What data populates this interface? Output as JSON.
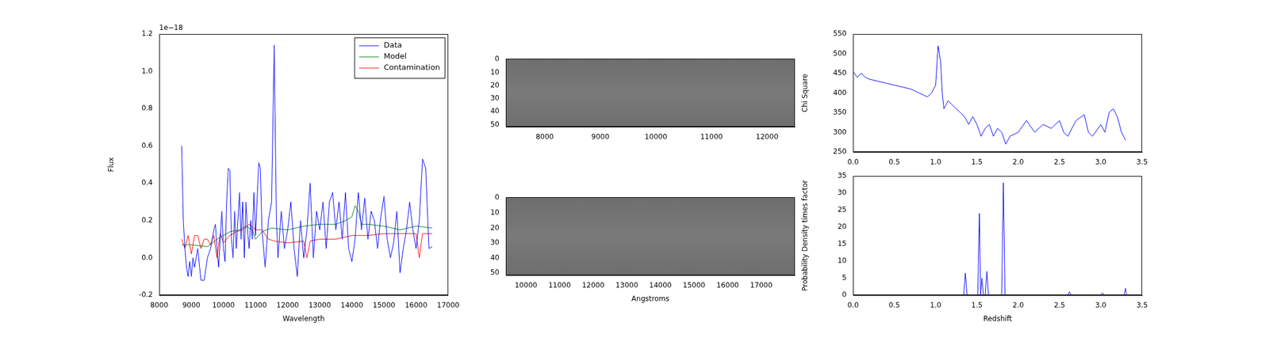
{
  "chart_data": [
    {
      "type": "line",
      "x_label": "Wavelength",
      "y_label": "Flux",
      "annotations": [
        "1e−18"
      ],
      "legend": "upper right",
      "xlim": [
        8000,
        17000
      ],
      "xticks": [
        8000,
        9000,
        10000,
        11000,
        12000,
        13000,
        14000,
        15000,
        16000,
        17000
      ],
      "ylim": [
        -0.2,
        1.2
      ],
      "yticks": [
        -0.2,
        {
          "value": 0,
          "label": "0.0"
        },
        0.2,
        0.4,
        0.6,
        0.8,
        {
          "value": 1,
          "label": "1.0"
        },
        1.2
      ],
      "series": [
        {
          "name": "Data",
          "color": "#0000ff",
          "x": [
            8700,
            8750,
            8800,
            8850,
            8900,
            8950,
            9000,
            9050,
            9100,
            9200,
            9300,
            9400,
            9500,
            9600,
            9700,
            9750,
            9800,
            9850,
            9900,
            9950,
            10000,
            10050,
            10100,
            10150,
            10200,
            10250,
            10300,
            10350,
            10400,
            10450,
            10500,
            10550,
            10600,
            10650,
            10700,
            10750,
            10800,
            10850,
            10900,
            10950,
            11000,
            11100,
            11150,
            11200,
            11300,
            11400,
            11500,
            11580,
            11650,
            11700,
            11800,
            11900,
            12000,
            12100,
            12200,
            12300,
            12400,
            12500,
            12600,
            12700,
            12800,
            12900,
            13000,
            13100,
            13200,
            13300,
            13400,
            13500,
            13600,
            13700,
            13800,
            13900,
            14000,
            14100,
            14200,
            14300,
            14400,
            14500,
            14600,
            14700,
            14800,
            14900,
            15000,
            15100,
            15200,
            15300,
            15400,
            15500,
            15600,
            15700,
            15800,
            15900,
            16000,
            16100,
            16200,
            16300,
            16400,
            16500
          ],
          "values": [
            0.6,
            0.2,
            0.05,
            -0.05,
            -0.1,
            -0.02,
            -0.1,
            0.0,
            -0.05,
            0.05,
            -0.12,
            -0.12,
            0.0,
            0.05,
            0.15,
            0.18,
            0.05,
            -0.05,
            0.1,
            0.25,
            0.05,
            -0.02,
            0.3,
            0.48,
            0.47,
            0.1,
            0.0,
            0.25,
            0.05,
            0.2,
            0.35,
            0.1,
            0.3,
            0.0,
            0.3,
            0.15,
            0.05,
            0.2,
            0.1,
            0.35,
            0.12,
            0.51,
            0.48,
            0.15,
            -0.05,
            0.2,
            0.3,
            1.14,
            0.2,
            0.0,
            0.25,
            0.05,
            0.15,
            0.3,
            0.05,
            -0.1,
            0.2,
            0.0,
            0.15,
            0.4,
            0.0,
            0.25,
            0.15,
            0.3,
            0.05,
            0.3,
            0.35,
            0.15,
            0.3,
            0.1,
            0.35,
            0.05,
            -0.02,
            0.1,
            0.35,
            0.15,
            0.32,
            0.1,
            0.25,
            0.2,
            0.05,
            0.22,
            0.33,
            0.1,
            0.0,
            0.08,
            0.25,
            -0.08,
            0.05,
            0.15,
            0.3,
            0.15,
            0.05,
            0.2,
            0.53,
            0.48,
            0.05,
            0.06
          ]
        },
        {
          "name": "Model",
          "color": "#008000",
          "x": [
            8700,
            9000,
            9500,
            9800,
            10000,
            10200,
            10500,
            10700,
            10900,
            11000,
            11200,
            11500,
            12000,
            12500,
            13000,
            13500,
            13800,
            14000,
            14100,
            14200,
            14300,
            14500,
            15000,
            15500,
            16000,
            16500
          ],
          "values": [
            0.07,
            0.07,
            0.06,
            0.1,
            0.12,
            0.14,
            0.15,
            0.17,
            0.15,
            0.1,
            0.14,
            0.16,
            0.15,
            0.17,
            0.18,
            0.18,
            0.2,
            0.22,
            0.28,
            0.25,
            0.18,
            0.18,
            0.17,
            0.15,
            0.17,
            0.16
          ]
        },
        {
          "name": "Contamination",
          "color": "#ff0000",
          "x": [
            8700,
            8800,
            8900,
            9000,
            9100,
            9200,
            9300,
            9400,
            9500,
            9600,
            9700,
            9800,
            9900,
            10000,
            10200,
            10400,
            10600,
            10800,
            11000,
            11200,
            11400,
            11600,
            12000,
            12500,
            12600,
            12700,
            13000,
            13500,
            14000,
            14500,
            15000,
            15500,
            16000,
            16100,
            16200,
            16500
          ],
          "values": [
            0.1,
            0.05,
            0.12,
            0.02,
            0.12,
            0.12,
            0.05,
            0.1,
            0.1,
            0.07,
            0.12,
            0.0,
            0.13,
            0.08,
            0.12,
            0.14,
            0.15,
            0.18,
            0.15,
            0.15,
            0.1,
            0.09,
            0.08,
            0.09,
            0.0,
            0.09,
            0.1,
            0.1,
            0.12,
            0.12,
            0.13,
            0.13,
            0.13,
            0.0,
            0.13,
            0.13
          ]
        }
      ]
    },
    {
      "type": "image",
      "xlim": [
        7300,
        12500
      ],
      "xticks": [
        8000,
        9000,
        10000,
        11000,
        12000
      ],
      "ylim": [
        51.5,
        -0.5
      ],
      "yticks": [
        0,
        10,
        20,
        30,
        40,
        50
      ]
    },
    {
      "type": "image",
      "x_label": "Angstroms",
      "xlim": [
        9400,
        18000
      ],
      "xticks": [
        10000,
        11000,
        12000,
        13000,
        14000,
        15000,
        16000,
        17000
      ],
      "ylim": [
        51.5,
        -0.5
      ],
      "yticks": [
        0,
        10,
        20,
        30,
        40,
        50
      ]
    },
    {
      "type": "line",
      "y_label": "Chi Square",
      "xlim": [
        0,
        3.5
      ],
      "xticks": [
        {
          "value": 0,
          "label": "0.0"
        },
        0.5,
        {
          "value": 1,
          "label": "1.0"
        },
        1.5,
        {
          "value": 2,
          "label": "2.0"
        },
        2.5,
        {
          "value": 3,
          "label": "3.0"
        },
        3.5
      ],
      "ylim": [
        250,
        550
      ],
      "yticks": [
        250,
        300,
        350,
        400,
        450,
        500,
        550
      ],
      "series": [
        {
          "color": "#0000ff",
          "x": [
            0,
            0.05,
            0.1,
            0.15,
            0.2,
            0.3,
            0.4,
            0.5,
            0.6,
            0.7,
            0.8,
            0.85,
            0.9,
            0.95,
            1.0,
            1.03,
            1.06,
            1.08,
            1.1,
            1.15,
            1.2,
            1.3,
            1.35,
            1.4,
            1.45,
            1.5,
            1.55,
            1.6,
            1.65,
            1.7,
            1.75,
            1.8,
            1.85,
            1.9,
            2.0,
            2.1,
            2.2,
            2.3,
            2.4,
            2.5,
            2.55,
            2.6,
            2.7,
            2.8,
            2.85,
            2.9,
            3.0,
            3.05,
            3.1,
            3.15,
            3.2,
            3.25,
            3.3
          ],
          "values": [
            455,
            440,
            450,
            440,
            435,
            430,
            425,
            420,
            415,
            410,
            400,
            395,
            390,
            400,
            420,
            520,
            480,
            400,
            360,
            380,
            370,
            350,
            340,
            320,
            340,
            320,
            290,
            310,
            320,
            290,
            310,
            300,
            270,
            290,
            300,
            330,
            300,
            320,
            310,
            330,
            300,
            290,
            330,
            345,
            300,
            290,
            320,
            300,
            350,
            360,
            340,
            300,
            280
          ]
        }
      ]
    },
    {
      "type": "line",
      "x_label": "Redshift",
      "y_label": "Probability Density times factor",
      "xlim": [
        0,
        3.5
      ],
      "xticks": [
        {
          "value": 0,
          "label": "0.0"
        },
        0.5,
        {
          "value": 1,
          "label": "1.0"
        },
        1.5,
        {
          "value": 2,
          "label": "2.0"
        },
        2.5,
        {
          "value": 3,
          "label": "3.0"
        },
        3.5
      ],
      "ylim": [
        0,
        35
      ],
      "yticks": [
        0,
        5,
        10,
        15,
        20,
        25,
        30,
        35
      ],
      "series": [
        {
          "color": "#0000ff",
          "x": [
            0,
            1.34,
            1.36,
            1.38,
            1.51,
            1.53,
            1.545,
            1.56,
            1.58,
            1.6,
            1.62,
            1.64,
            1.8,
            1.82,
            1.84,
            2.6,
            2.62,
            2.64,
            3.0,
            3.02,
            3.04,
            3.28,
            3.3,
            3.31
          ],
          "values": [
            0,
            0,
            6.5,
            0,
            0,
            24,
            0,
            5,
            0,
            0,
            7,
            0,
            0,
            33,
            0,
            0,
            1,
            0,
            0,
            0.7,
            0,
            0,
            2,
            0
          ]
        }
      ]
    }
  ]
}
